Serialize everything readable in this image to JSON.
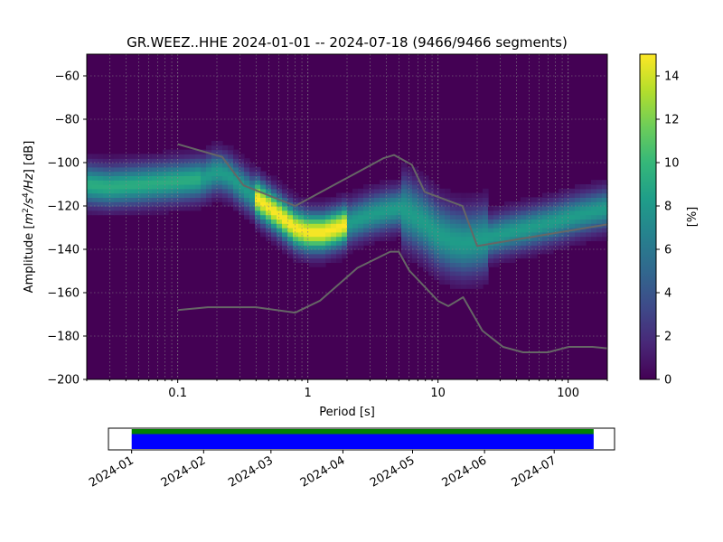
{
  "chart_data": [
    {
      "type": "heatmap",
      "title": "GR.WEEZ..HHE   2024-01-01 -- 2024-07-18  (9466/9466 segments)",
      "xlabel": "Period [s]",
      "ylabel": "Amplitude [m²/s⁴/Hz] [dB]",
      "ylabel_parts": {
        "base": "Amplitude [",
        "m": "m",
        "e2": "2",
        "s": "/s",
        "e4": "4",
        "hz": "/Hz",
        "tail": "] [dB]"
      },
      "x_scale": "log",
      "xlim": [
        0.02,
        200
      ],
      "ylim": [
        -200,
        -50
      ],
      "x_ticks": [
        0.1,
        1,
        10,
        100
      ],
      "x_tick_labels": [
        "0.1",
        "1",
        "10",
        "100"
      ],
      "y_ticks": [
        -200,
        -180,
        -160,
        -140,
        -120,
        -100,
        -80,
        -60
      ],
      "y_tick_labels": [
        "−200",
        "−180",
        "−160",
        "−140",
        "−120",
        "−100",
        "−80",
        "−60"
      ],
      "grid": true,
      "colormap": "viridis",
      "colorbar": {
        "label": "[%]",
        "range": [
          0,
          15
        ],
        "ticks": [
          0,
          2,
          4,
          6,
          8,
          10,
          12,
          14
        ],
        "tick_labels": [
          "0",
          "2",
          "4",
          "6",
          "8",
          "10",
          "12",
          "14"
        ]
      },
      "mode_curve": {
        "period": [
          0.02,
          0.03,
          0.05,
          0.08,
          0.12,
          0.16,
          0.2,
          0.25,
          0.3,
          0.4,
          0.6,
          0.8,
          1.0,
          1.3,
          1.7,
          2.2,
          3,
          4,
          5,
          6,
          8,
          10,
          13,
          16,
          20,
          30,
          50,
          80,
          120,
          200
        ],
        "amplitude_db": [
          -110,
          -111,
          -110,
          -109,
          -108,
          -107,
          -104,
          -106,
          -110,
          -116,
          -124,
          -130,
          -132,
          -132,
          -130,
          -127,
          -124,
          -122,
          -121,
          -123,
          -128,
          -133,
          -136,
          -137,
          -136,
          -133,
          -130,
          -127,
          -124,
          -121
        ]
      },
      "spread_db": 6,
      "noise_models": [
        {
          "name": "",
          "color": "#666666",
          "period": [
            0.1,
            0.22,
            0.32,
            0.8,
            3.8,
            4.6,
            6.3,
            7.9,
            15.4,
            20,
            200
          ],
          "amplitude_db": [
            -91.5,
            -97.4,
            -110.5,
            -120,
            -98,
            -96.5,
            -101,
            -113.5,
            -120,
            -138.5,
            -128.5
          ]
        },
        {
          "name": "",
          "color": "#666666",
          "period": [
            0.1,
            0.17,
            0.4,
            0.8,
            1.24,
            2.4,
            4.3,
            5.0,
            6.0,
            10.0,
            12.0,
            15.6,
            21.9,
            31.6,
            45,
            70,
            101,
            154,
            200
          ],
          "amplitude_db": [
            -168,
            -166.7,
            -166.7,
            -169.2,
            -163.7,
            -148.6,
            -141.1,
            -141.1,
            -149.7,
            -163.8,
            -166.2,
            -162.1,
            -177.5,
            -185,
            -187.5,
            -187.5,
            -185,
            -185,
            -185.7
          ]
        }
      ]
    },
    {
      "type": "bar",
      "orientation": "horizontal",
      "x_scale": "time",
      "xlim": [
        "2023-12-22",
        "2024-07-27"
      ],
      "series": [
        {
          "name": "",
          "color": "#008000",
          "start": "2024-01-01",
          "end": "2024-07-18"
        },
        {
          "name": "",
          "color": "#0000ff",
          "start": "2024-01-01",
          "end": "2024-07-18"
        }
      ],
      "x_ticks": [
        "2024-01-01",
        "2024-02-01",
        "2024-03-01",
        "2024-04-01",
        "2024-05-01",
        "2024-06-01",
        "2024-07-01"
      ],
      "x_tick_labels": [
        "2024-01",
        "2024-02",
        "2024-03",
        "2024-04",
        "2024-05",
        "2024-06",
        "2024-07"
      ]
    }
  ]
}
